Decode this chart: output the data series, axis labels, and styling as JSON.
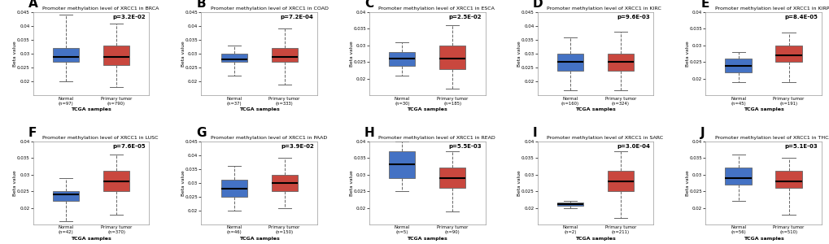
{
  "panels": [
    {
      "label": "A",
      "title": "Promoter methylation level of XRCC1 in BRCA",
      "pvalue": "p=3.2E-02",
      "ylim": [
        0.015,
        0.045
      ],
      "yticks": [
        0.02,
        0.025,
        0.03,
        0.035,
        0.04,
        0.045
      ],
      "yticklabels": [
        "0.02",
        "0.025",
        "0.03",
        "0.035",
        "0.04",
        "0.045"
      ],
      "normal": {
        "n": 97,
        "median": 0.029,
        "q1": 0.027,
        "q3": 0.032,
        "whislo": 0.02,
        "whishi": 0.044
      },
      "tumor": {
        "n": 790,
        "median": 0.029,
        "q1": 0.026,
        "q3": 0.033,
        "whislo": 0.018,
        "whishi": 0.041
      }
    },
    {
      "label": "B",
      "title": "Promoter methylation level of XRCC1 in COAD",
      "pvalue": "p=7.2E-04",
      "ylim": [
        0.015,
        0.045
      ],
      "yticks": [
        0.02,
        0.025,
        0.03,
        0.035,
        0.04,
        0.045
      ],
      "yticklabels": [
        "0.02",
        "0.025",
        "0.03",
        "0.035",
        "0.04",
        "0.045"
      ],
      "normal": {
        "n": 37,
        "median": 0.028,
        "q1": 0.027,
        "q3": 0.03,
        "whislo": 0.022,
        "whishi": 0.033
      },
      "tumor": {
        "n": 333,
        "median": 0.029,
        "q1": 0.027,
        "q3": 0.032,
        "whislo": 0.019,
        "whishi": 0.039
      }
    },
    {
      "label": "C",
      "title": "Promoter methylation level of XRCC1 in ESCA",
      "pvalue": "p=2.5E-02",
      "ylim": [
        0.015,
        0.04
      ],
      "yticks": [
        0.02,
        0.025,
        0.03,
        0.035,
        0.04
      ],
      "yticklabels": [
        "0.02",
        "0.025",
        "0.03",
        "0.035",
        "0.04"
      ],
      "normal": {
        "n": 30,
        "median": 0.026,
        "q1": 0.024,
        "q3": 0.028,
        "whislo": 0.021,
        "whishi": 0.031
      },
      "tumor": {
        "n": 185,
        "median": 0.026,
        "q1": 0.023,
        "q3": 0.03,
        "whislo": 0.017,
        "whishi": 0.036
      }
    },
    {
      "label": "D",
      "title": "Promoter methylation level of XRCC1 in KIRC",
      "pvalue": "p=9.6E-03",
      "ylim": [
        0.015,
        0.045
      ],
      "yticks": [
        0.02,
        0.025,
        0.03,
        0.035,
        0.04,
        0.045
      ],
      "yticklabels": [
        "0.02",
        "0.025",
        "0.03",
        "0.035",
        "0.04",
        "0.045"
      ],
      "normal": {
        "n": 160,
        "median": 0.027,
        "q1": 0.024,
        "q3": 0.03,
        "whislo": 0.017,
        "whishi": 0.036
      },
      "tumor": {
        "n": 324,
        "median": 0.027,
        "q1": 0.024,
        "q3": 0.03,
        "whislo": 0.017,
        "whishi": 0.038
      }
    },
    {
      "label": "E",
      "title": "Promoter methylation level of XRCC1 in KIRP",
      "pvalue": "p=8.4E-05",
      "ylim": [
        0.015,
        0.04
      ],
      "yticks": [
        0.02,
        0.025,
        0.03,
        0.035,
        0.04
      ],
      "yticklabels": [
        "0.02",
        "0.025",
        "0.03",
        "0.035",
        "0.04"
      ],
      "normal": {
        "n": 45,
        "median": 0.024,
        "q1": 0.022,
        "q3": 0.026,
        "whislo": 0.019,
        "whishi": 0.028
      },
      "tumor": {
        "n": 191,
        "median": 0.027,
        "q1": 0.025,
        "q3": 0.03,
        "whislo": 0.019,
        "whishi": 0.034
      }
    },
    {
      "label": "F",
      "title": "Promoter methylation level of XRCC1 in LUSC",
      "pvalue": "p=7.6E-05",
      "ylim": [
        0.015,
        0.04
      ],
      "yticks": [
        0.02,
        0.025,
        0.03,
        0.035,
        0.04
      ],
      "yticklabels": [
        "0.02",
        "0.025",
        "0.03",
        "0.035",
        "0.04"
      ],
      "normal": {
        "n": 42,
        "median": 0.024,
        "q1": 0.022,
        "q3": 0.025,
        "whislo": 0.016,
        "whishi": 0.029
      },
      "tumor": {
        "n": 370,
        "median": 0.028,
        "q1": 0.025,
        "q3": 0.031,
        "whislo": 0.018,
        "whishi": 0.036
      }
    },
    {
      "label": "G",
      "title": "Promoter methylation level of XRCC1 in PAAD",
      "pvalue": "p=3.9E-02",
      "ylim": [
        0.015,
        0.045
      ],
      "yticks": [
        0.02,
        0.025,
        0.03,
        0.035,
        0.04,
        0.045
      ],
      "yticklabels": [
        "0.02",
        "0.025",
        "0.03",
        "0.035",
        "0.04",
        "0.045"
      ],
      "normal": {
        "n": 46,
        "median": 0.028,
        "q1": 0.025,
        "q3": 0.031,
        "whislo": 0.02,
        "whishi": 0.036
      },
      "tumor": {
        "n": 150,
        "median": 0.03,
        "q1": 0.027,
        "q3": 0.033,
        "whislo": 0.021,
        "whishi": 0.039
      }
    },
    {
      "label": "H",
      "title": "Promoter methylation level of XRCC1 in READ",
      "pvalue": "p=5.5E-03",
      "ylim": [
        0.015,
        0.04
      ],
      "yticks": [
        0.02,
        0.025,
        0.03,
        0.035,
        0.04
      ],
      "yticklabels": [
        "0.02",
        "0.025",
        "0.03",
        "0.035",
        "0.04"
      ],
      "normal": {
        "n": 5,
        "median": 0.033,
        "q1": 0.029,
        "q3": 0.037,
        "whislo": 0.025,
        "whishi": 0.04
      },
      "tumor": {
        "n": 90,
        "median": 0.029,
        "q1": 0.026,
        "q3": 0.032,
        "whislo": 0.019,
        "whishi": 0.037
      }
    },
    {
      "label": "I",
      "title": "Promoter methylation level of XRCC1 in SARC",
      "pvalue": "p=3.0E-04",
      "ylim": [
        0.015,
        0.04
      ],
      "yticks": [
        0.02,
        0.025,
        0.03,
        0.035,
        0.04
      ],
      "yticklabels": [
        "0.02",
        "0.025",
        "0.03",
        "0.035",
        "0.04"
      ],
      "normal": {
        "n": 2,
        "median": 0.021,
        "q1": 0.0205,
        "q3": 0.0215,
        "whislo": 0.02,
        "whishi": 0.022
      },
      "tumor": {
        "n": 211,
        "median": 0.028,
        "q1": 0.025,
        "q3": 0.031,
        "whislo": 0.017,
        "whishi": 0.037
      }
    },
    {
      "label": "J",
      "title": "Promoter methylation level of XRCC1 in THCA",
      "pvalue": "p=5.1E-03",
      "ylim": [
        0.015,
        0.04
      ],
      "yticks": [
        0.02,
        0.025,
        0.03,
        0.035,
        0.04
      ],
      "yticklabels": [
        "0.02",
        "0.025",
        "0.03",
        "0.035",
        "0.04"
      ],
      "normal": {
        "n": 56,
        "median": 0.029,
        "q1": 0.027,
        "q3": 0.032,
        "whislo": 0.022,
        "whishi": 0.036
      },
      "tumor": {
        "n": 510,
        "median": 0.028,
        "q1": 0.026,
        "q3": 0.031,
        "whislo": 0.018,
        "whishi": 0.035
      }
    }
  ],
  "blue_color": "#4472C4",
  "red_color": "#C9473E",
  "bg_color": "#FFFFFF",
  "whisker_color": "#666666",
  "box_edge_color": "#666666",
  "median_color": "#000000"
}
